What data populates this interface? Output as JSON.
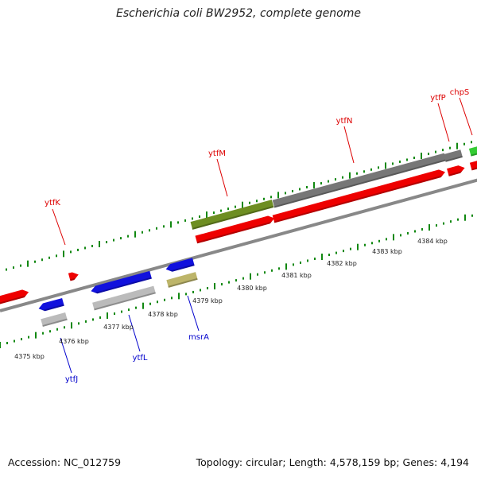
{
  "title": "Escherichia coli BW2952, complete genome",
  "footer": {
    "accession": "Accession: NC_012759",
    "stats": "Topology: circular; Length: 4,578,159 bp; Genes: 4,194"
  },
  "ticks": [
    "4375 kbp",
    "4376 kbp",
    "4377 kbp",
    "4378 kbp",
    "4379 kbp",
    "4380 kbp",
    "4381 kbp",
    "4382 kbp",
    "4383 kbp",
    "4384 kbp"
  ],
  "genes_top": [
    {
      "name": "ytfK",
      "color": "#dd0000"
    },
    {
      "name": "ytfM",
      "color": "#dd0000"
    },
    {
      "name": "ytfN",
      "color": "#dd0000"
    },
    {
      "name": "ytfP",
      "color": "#dd0000"
    },
    {
      "name": "chpS",
      "color": "#dd0000"
    }
  ],
  "genes_bottom": [
    {
      "name": "ytfJ",
      "color": "#0000cc"
    },
    {
      "name": "ytfL",
      "color": "#0000cc"
    },
    {
      "name": "msrA",
      "color": "#0000cc"
    }
  ],
  "colors": {
    "cds_forward": "#ee0000",
    "cds_reverse": "#1111dd",
    "feature_green": "#6e8e22",
    "feature_gray": "#777777",
    "feature_light": "#bbbbbb",
    "feature_tan": "#bdb56a",
    "feature_bright_green": "#33cc33",
    "backbone": "#777777",
    "ticks": "#118811"
  }
}
